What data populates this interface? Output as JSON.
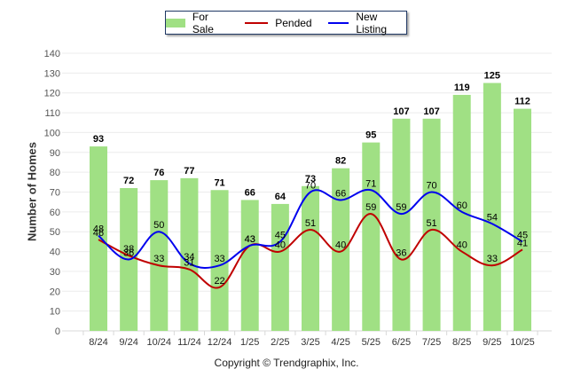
{
  "chart_data": {
    "type": "bar",
    "title": "",
    "xlabel": "",
    "ylabel": "Number of Homes",
    "ylim": [
      0,
      140
    ],
    "ytick_step": 10,
    "grid": true,
    "legend_position": "top-center",
    "categories": [
      "8/24",
      "9/24",
      "10/24",
      "11/24",
      "12/24",
      "1/25",
      "2/25",
      "3/25",
      "4/25",
      "5/25",
      "6/25",
      "7/25",
      "8/25",
      "9/25",
      "10/25"
    ],
    "series": [
      {
        "name": "For Sale",
        "type": "bar",
        "color": "#a0e084",
        "values": [
          93,
          72,
          76,
          77,
          71,
          66,
          64,
          73,
          82,
          95,
          107,
          107,
          119,
          125,
          112
        ]
      },
      {
        "name": "Pended",
        "type": "line",
        "color": "#c00000",
        "values": [
          46,
          38,
          33,
          31,
          22,
          43,
          40,
          51,
          40,
          59,
          36,
          51,
          40,
          33,
          41
        ]
      },
      {
        "name": "New Listing",
        "type": "line",
        "color": "#0000ee",
        "values": [
          48,
          36,
          50,
          34,
          33,
          43,
          45,
          70,
          66,
          71,
          59,
          70,
          60,
          54,
          45
        ]
      }
    ]
  },
  "legend": {
    "items": [
      {
        "label": "For Sale",
        "color": "#a0e084"
      },
      {
        "label": "Pended",
        "color": "#c00000"
      },
      {
        "label": "New Listing",
        "color": "#0000ee"
      }
    ]
  },
  "footer": {
    "copyright": "Copyright © Trendgraphix, Inc."
  }
}
